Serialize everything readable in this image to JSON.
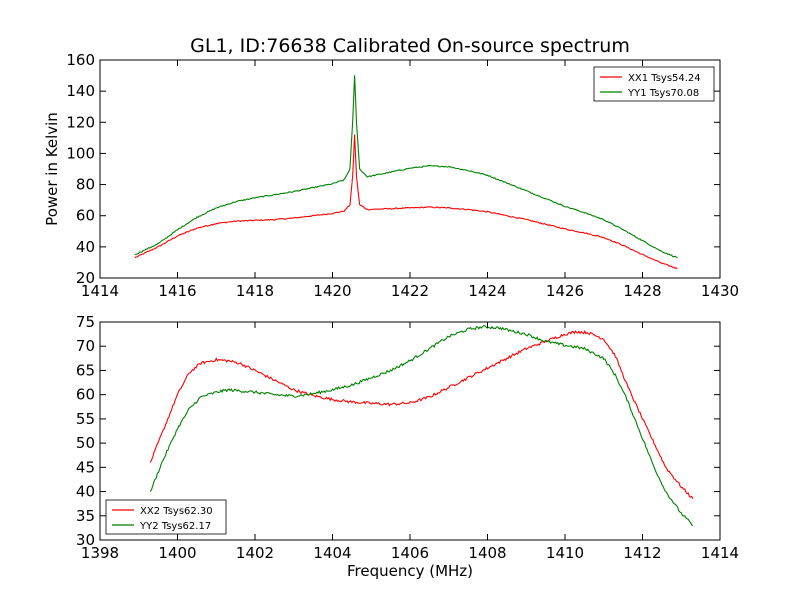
{
  "chart_data": [
    {
      "type": "line",
      "title": "GL1, ID:76638 Calibrated On-source spectrum",
      "xlabel": "",
      "ylabel": "Power in Kelvin",
      "xlim": [
        1414,
        1430
      ],
      "ylim": [
        20,
        160
      ],
      "xticks": [
        "1414",
        "1416",
        "1418",
        "1420",
        "1422",
        "1424",
        "1426",
        "1428",
        "1430"
      ],
      "yticks": [
        "20",
        "40",
        "60",
        "80",
        "100",
        "120",
        "140",
        "160"
      ],
      "legend_position": "top-right",
      "grid": false,
      "series": [
        {
          "name": "XX1 Tsys54.24",
          "color": "#ff0000",
          "x": [
            1414.9,
            1415.5,
            1416.0,
            1416.5,
            1417.0,
            1417.5,
            1418.0,
            1418.5,
            1419.0,
            1419.5,
            1420.0,
            1420.3,
            1420.45,
            1420.52,
            1420.57,
            1420.62,
            1420.7,
            1420.9,
            1421.5,
            1422.0,
            1422.5,
            1423.0,
            1423.5,
            1424.0,
            1424.5,
            1425.0,
            1425.5,
            1426.0,
            1426.5,
            1427.0,
            1427.5,
            1428.0,
            1428.5,
            1428.9
          ],
          "y": [
            33,
            40,
            47,
            52,
            55,
            56.5,
            57,
            57.5,
            58.5,
            60,
            61.5,
            63,
            67,
            85,
            112,
            85,
            67,
            64,
            64.5,
            65,
            65.5,
            65,
            64,
            62.5,
            60,
            57.5,
            54.5,
            51.5,
            49,
            46,
            41,
            35,
            29.5,
            26
          ]
        },
        {
          "name": "YY1 Tsys70.08",
          "color": "#008000",
          "x": [
            1414.9,
            1415.5,
            1416.0,
            1416.5,
            1417.0,
            1417.5,
            1418.0,
            1418.5,
            1419.0,
            1419.5,
            1420.0,
            1420.3,
            1420.45,
            1420.52,
            1420.57,
            1420.62,
            1420.7,
            1420.9,
            1421.5,
            1422.0,
            1422.5,
            1423.0,
            1423.5,
            1424.0,
            1424.5,
            1425.0,
            1425.5,
            1426.0,
            1426.5,
            1427.0,
            1427.5,
            1428.0,
            1428.5,
            1428.9
          ],
          "y": [
            35,
            42,
            51,
            59,
            65,
            69,
            71.5,
            73.5,
            75.5,
            78,
            80.5,
            83,
            90,
            120,
            150,
            120,
            90,
            85,
            88,
            90.5,
            92,
            91.5,
            89,
            86,
            81,
            76,
            71,
            66,
            62,
            57.5,
            51,
            44,
            37,
            33
          ]
        }
      ]
    },
    {
      "type": "line",
      "title": "",
      "xlabel": "Frequency (MHz)",
      "ylabel": "",
      "xlim": [
        1398,
        1414
      ],
      "ylim": [
        30,
        75
      ],
      "xticks": [
        "1398",
        "1400",
        "1402",
        "1404",
        "1406",
        "1408",
        "1410",
        "1412",
        "1414"
      ],
      "yticks": [
        "30",
        "35",
        "40",
        "45",
        "50",
        "55",
        "60",
        "65",
        "70",
        "75"
      ],
      "legend_position": "bottom-left",
      "grid": false,
      "series": [
        {
          "name": "XX2 Tsys62.30",
          "color": "#ff0000",
          "x": [
            1399.3,
            1399.6,
            1400.0,
            1400.3,
            1400.6,
            1401.0,
            1401.3,
            1401.6,
            1402.0,
            1402.5,
            1403.0,
            1403.5,
            1404.0,
            1404.5,
            1405.0,
            1405.5,
            1406.0,
            1406.5,
            1407.0,
            1407.5,
            1408.0,
            1408.5,
            1409.0,
            1409.5,
            1410.0,
            1410.3,
            1410.6,
            1411.0,
            1411.3,
            1411.6,
            1412.0,
            1412.3,
            1412.6,
            1413.0,
            1413.3
          ],
          "y": [
            46,
            52,
            60,
            64.5,
            66.5,
            67.2,
            67,
            66.5,
            65,
            63,
            61,
            59.8,
            59,
            58.5,
            58.2,
            58,
            58.3,
            59.5,
            61.5,
            63.5,
            65.5,
            67.5,
            69.5,
            71,
            72.5,
            73,
            72.8,
            71.5,
            68,
            62,
            55,
            50,
            45,
            41,
            38.5
          ]
        },
        {
          "name": "YY2 Tsys62.17",
          "color": "#008000",
          "x": [
            1399.3,
            1399.6,
            1400.0,
            1400.3,
            1400.6,
            1401.0,
            1401.3,
            1401.6,
            1402.0,
            1402.5,
            1403.0,
            1403.5,
            1404.0,
            1404.5,
            1405.0,
            1405.5,
            1406.0,
            1406.5,
            1407.0,
            1407.5,
            1407.9,
            1408.3,
            1408.7,
            1409.0,
            1409.5,
            1410.0,
            1410.5,
            1411.0,
            1411.3,
            1411.6,
            1412.0,
            1412.3,
            1412.6,
            1413.0,
            1413.3
          ],
          "y": [
            40,
            46,
            53,
            57,
            59.5,
            60.5,
            61,
            60.8,
            60.5,
            60,
            59.7,
            60.2,
            61,
            62,
            63.5,
            65,
            67,
            69.5,
            72,
            73.5,
            74,
            73.8,
            73,
            72.5,
            71,
            70.2,
            69.5,
            67.5,
            64,
            59,
            51,
            45,
            40,
            35.5,
            33
          ]
        }
      ]
    }
  ]
}
